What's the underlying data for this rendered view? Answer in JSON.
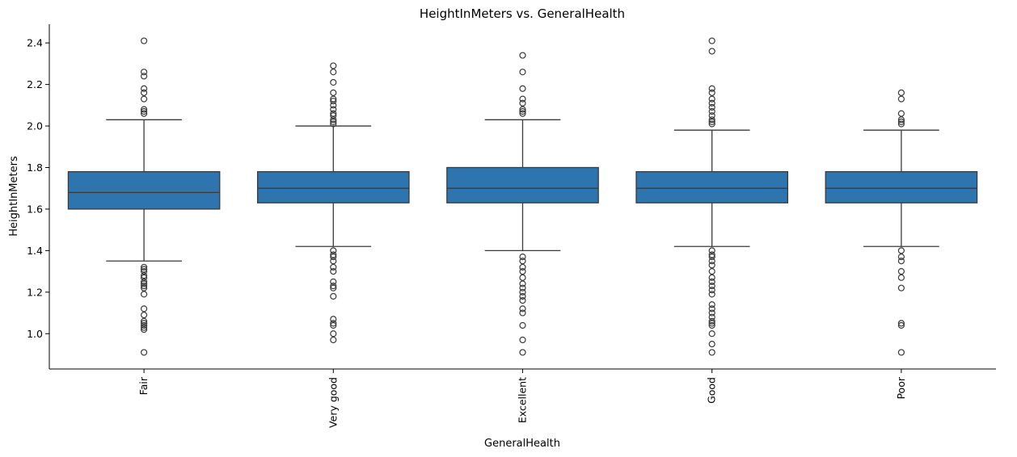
{
  "chart_data": {
    "type": "box",
    "title": "HeightInMeters vs. GeneralHealth",
    "xlabel": "GeneralHealth",
    "ylabel": "HeightInMeters",
    "ylim": [
      0.83,
      2.49
    ],
    "yticks": [
      1.0,
      1.2,
      1.4,
      1.6,
      1.8,
      2.0,
      2.2,
      2.4
    ],
    "ytick_labels": [
      "1.0",
      "1.2",
      "1.4",
      "1.6",
      "1.8",
      "2.0",
      "2.2",
      "2.4"
    ],
    "box_color": "#2e75b0",
    "grid": false,
    "categories": [
      "Fair",
      "Very good",
      "Excellent",
      "Good",
      "Poor"
    ],
    "boxes": [
      {
        "category": "Fair",
        "q1": 1.6,
        "median": 1.68,
        "q3": 1.78,
        "whisker_low": 1.35,
        "whisker_high": 2.03,
        "outliers": [
          2.41,
          2.26,
          2.24,
          2.18,
          2.16,
          2.13,
          2.08,
          2.07,
          2.06,
          1.32,
          1.31,
          1.3,
          1.28,
          1.27,
          1.25,
          1.24,
          1.23,
          1.22,
          1.19,
          1.12,
          1.09,
          1.06,
          1.05,
          1.04,
          1.03,
          1.02,
          0.91
        ]
      },
      {
        "category": "Very good",
        "q1": 1.63,
        "median": 1.7,
        "q3": 1.78,
        "whisker_low": 1.42,
        "whisker_high": 2.0,
        "outliers": [
          2.29,
          2.26,
          2.21,
          2.16,
          2.13,
          2.12,
          2.1,
          2.08,
          2.06,
          2.05,
          2.03,
          2.02,
          2.01,
          1.4,
          1.38,
          1.37,
          1.35,
          1.32,
          1.3,
          1.25,
          1.23,
          1.22,
          1.18,
          1.07,
          1.05,
          1.04,
          1.0,
          0.97
        ]
      },
      {
        "category": "Excellent",
        "q1": 1.63,
        "median": 1.7,
        "q3": 1.8,
        "whisker_low": 1.4,
        "whisker_high": 2.03,
        "outliers": [
          2.34,
          2.26,
          2.18,
          2.13,
          2.11,
          2.08,
          2.07,
          2.06,
          1.37,
          1.35,
          1.32,
          1.3,
          1.27,
          1.24,
          1.22,
          1.2,
          1.18,
          1.16,
          1.12,
          1.1,
          1.04,
          0.97,
          0.91
        ]
      },
      {
        "category": "Good",
        "q1": 1.63,
        "median": 1.7,
        "q3": 1.78,
        "whisker_low": 1.42,
        "whisker_high": 1.98,
        "outliers": [
          2.41,
          2.36,
          2.18,
          2.16,
          2.13,
          2.11,
          2.09,
          2.07,
          2.05,
          2.03,
          2.02,
          2.01,
          1.4,
          1.38,
          1.37,
          1.35,
          1.33,
          1.3,
          1.27,
          1.25,
          1.23,
          1.21,
          1.19,
          1.14,
          1.12,
          1.1,
          1.08,
          1.06,
          1.05,
          1.04,
          1.0,
          0.95,
          0.91
        ]
      },
      {
        "category": "Poor",
        "q1": 1.63,
        "median": 1.7,
        "q3": 1.78,
        "whisker_low": 1.42,
        "whisker_high": 1.98,
        "outliers": [
          2.16,
          2.13,
          2.06,
          2.03,
          2.02,
          2.01,
          1.4,
          1.37,
          1.35,
          1.3,
          1.27,
          1.22,
          1.05,
          1.04,
          0.91
        ]
      }
    ]
  }
}
